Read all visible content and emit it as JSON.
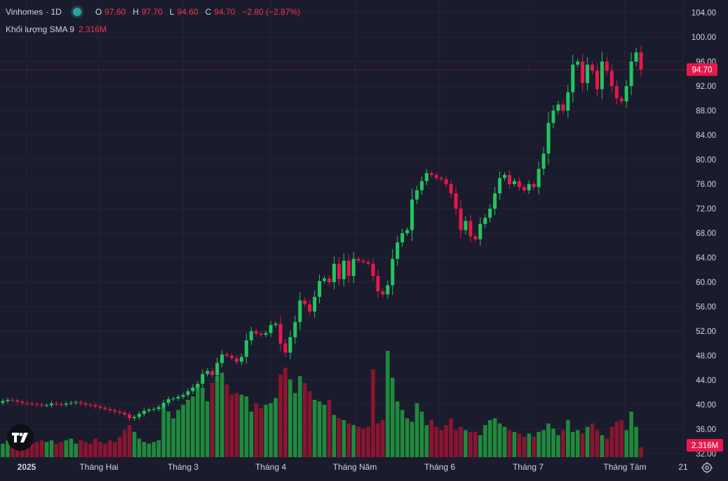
{
  "header": {
    "symbol": "Vinhomes",
    "interval": "· 1D",
    "o_label": "O",
    "o_value": "97.60",
    "h_label": "H",
    "h_value": "97.70",
    "l_label": "L",
    "l_value": "94.60",
    "c_label": "C",
    "c_value": "94.70",
    "change": "−2.80 (−2.87%)"
  },
  "volume_indicator": {
    "label": "Khối lượng SMA 9",
    "value": "2.316M"
  },
  "colors": {
    "up": "#22c55e",
    "down": "#e5194a",
    "vol_up": "#1f8a3c",
    "vol_down": "#8b1530",
    "background": "#1b1b2e",
    "grid": "#262638"
  },
  "icons": {
    "logo": "tradingview-logo-icon",
    "settings": "gear-icon"
  },
  "chart_data": {
    "type": "candlestick",
    "yaxis": {
      "ticks": [
        "104.00",
        "100.00",
        "96.00",
        "92.00",
        "88.00",
        "84.00",
        "80.00",
        "76.00",
        "72.00",
        "68.00",
        "64.00",
        "60.00",
        "56.00",
        "52.00",
        "48.00",
        "44.00",
        "40.00",
        "36.00",
        "32.00"
      ],
      "range": [
        30.8,
        106.0
      ]
    },
    "xaxis": {
      "ticks": [
        "2025",
        "Tháng Hai",
        "Tháng 3",
        "Tháng 4",
        "Tháng Năm",
        "Tháng 6",
        "Tháng 7",
        "Tháng Tám",
        "21"
      ]
    },
    "last_price_label": "94.70",
    "volume_label": "2.316M",
    "closes": [
      40.6,
      40.8,
      40.7,
      40.5,
      40.3,
      40.2,
      40.1,
      40.0,
      39.9,
      39.9,
      40.2,
      40.1,
      40.0,
      40.2,
      40.3,
      40.4,
      40.2,
      40.0,
      39.9,
      39.7,
      39.5,
      39.3,
      39.1,
      38.9,
      38.7,
      38.4,
      37.8,
      38.0,
      38.5,
      39.0,
      39.2,
      39.3,
      39.6,
      40.3,
      40.9,
      41.0,
      41.3,
      41.6,
      42.2,
      42.8,
      43.4,
      45.0,
      45.5,
      44.8,
      46.8,
      48.2,
      48.0,
      47.6,
      47.0,
      47.8,
      50.5,
      52.0,
      51.6,
      51.4,
      51.7,
      53.0,
      53.2,
      50.0,
      48.5,
      51.0,
      53.5,
      57.0,
      56.4,
      55.2,
      57.6,
      60.2,
      60.6,
      60.0,
      63.0,
      60.5,
      63.5,
      61.0,
      63.8,
      63.5,
      63.3,
      63.0,
      61.0,
      58.5,
      58.0,
      59.5,
      63.8,
      66.5,
      68.0,
      68.5,
      73.5,
      75.0,
      76.5,
      77.8,
      77.5,
      77.0,
      76.8,
      76.0,
      74.5,
      72.0,
      68.5,
      70.0,
      67.5,
      67.0,
      69.5,
      70.5,
      72.0,
      74.5,
      77.0,
      77.5,
      76.0,
      76.5,
      75.5,
      75.0,
      76.0,
      75.5,
      78.5,
      81.0,
      86.0,
      88.0,
      89.0,
      88.0,
      91.0,
      95.5,
      96.0,
      92.5,
      95.5,
      94.5,
      91.5,
      96.0,
      94.5,
      92.0,
      90.0,
      89.5,
      92.0,
      96.0,
      97.5,
      94.7
    ],
    "volumes": [
      0.8,
      1.0,
      1.1,
      0.9,
      1.0,
      0.9,
      0.8,
      0.9,
      1.0,
      0.9,
      1.0,
      0.8,
      0.9,
      1.0,
      1.1,
      0.8,
      1.0,
      0.9,
      0.8,
      1.1,
      0.9,
      0.8,
      1.0,
      0.9,
      1.2,
      1.6,
      1.9,
      1.5,
      1.1,
      0.9,
      0.8,
      0.9,
      1.0,
      3.0,
      2.7,
      2.3,
      2.8,
      3.1,
      3.4,
      3.6,
      4.3,
      4.1,
      3.3,
      4.4,
      4.8,
      5.0,
      4.3,
      3.7,
      3.8,
      3.7,
      3.6,
      2.7,
      3.2,
      2.9,
      3.1,
      3.2,
      3.5,
      4.9,
      5.3,
      4.6,
      3.8,
      4.8,
      4.4,
      3.9,
      3.4,
      3.3,
      3.1,
      3.4,
      2.5,
      2.3,
      2.2,
      2.0,
      1.9,
      1.8,
      1.7,
      1.8,
      5.2,
      2.0,
      2.2,
      6.3,
      4.7,
      3.3,
      2.8,
      2.3,
      2.1,
      3.2,
      2.7,
      1.9,
      2.2,
      1.8,
      1.6,
      1.9,
      2.3,
      1.6,
      1.8,
      1.6,
      1.5,
      1.5,
      1.3,
      1.9,
      2.2,
      2.3,
      2.0,
      1.8,
      1.6,
      1.5,
      1.4,
      1.2,
      1.4,
      1.2,
      1.5,
      1.6,
      2.0,
      1.7,
      1.3,
      1.6,
      2.2,
      1.5,
      1.6,
      1.4,
      1.8,
      2.0,
      1.6,
      1.3,
      1.1,
      1.8,
      2.1,
      2.2,
      1.6,
      2.7,
      1.8,
      0.6
    ]
  }
}
